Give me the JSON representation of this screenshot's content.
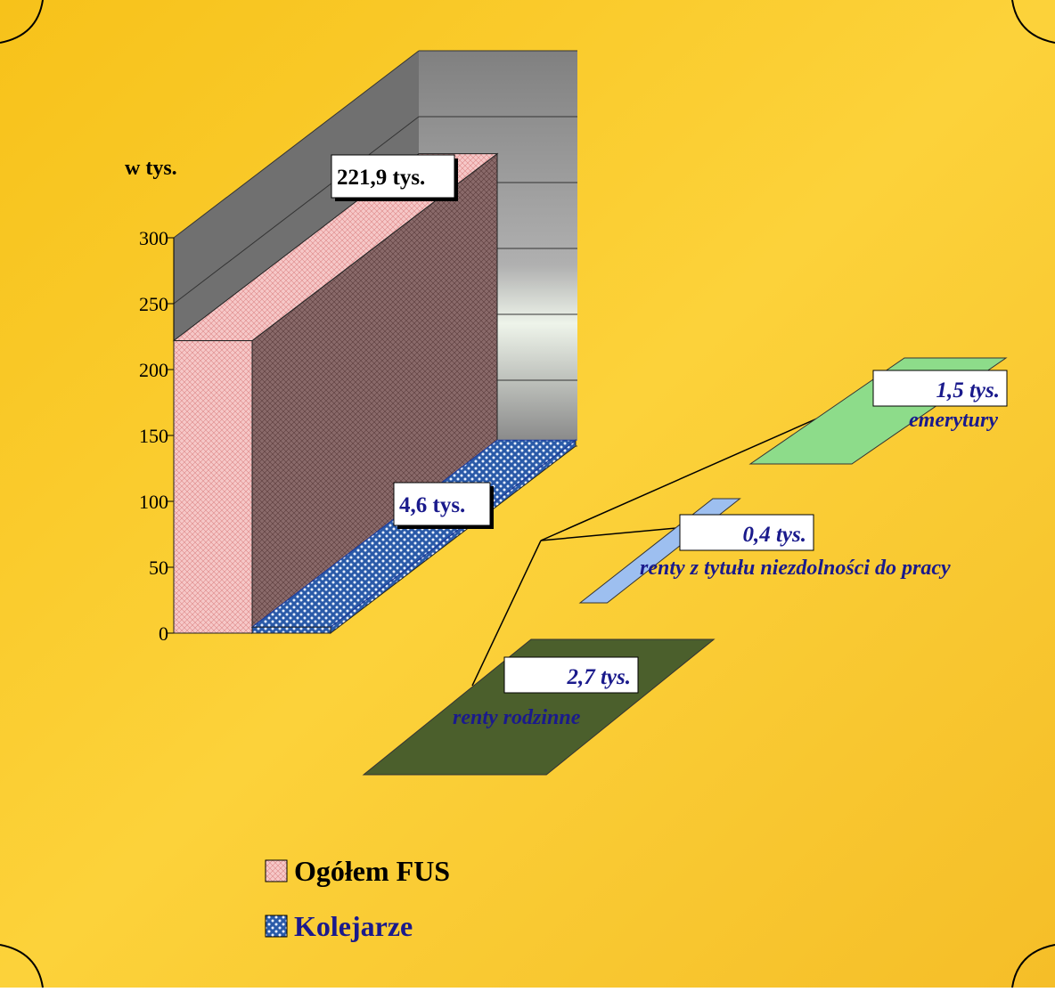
{
  "chart_data": [
    {
      "type": "bar3d",
      "y_label": "w tys.",
      "ylim": [
        0,
        300
      ],
      "yticks": [
        0,
        50,
        100,
        150,
        200,
        250,
        300
      ],
      "series": [
        {
          "name": "Ogółem FUS",
          "color": "#f6c8c8",
          "values": [
            221.9
          ],
          "value_labels": [
            "221,9 tys."
          ]
        },
        {
          "name": "Kolejarze",
          "color": "#2f5fc8",
          "values": [
            4.6
          ],
          "value_labels": [
            "4,6 tys."
          ]
        }
      ]
    },
    {
      "type": "breakdown",
      "categories": [
        "emerytury",
        "renty z tytułu niezdolności do pracy",
        "renty rodzinne"
      ],
      "values": [
        1.5,
        0.4,
        2.7
      ],
      "value_labels": [
        "1,5 tys.",
        "0,4  tys.",
        "2,7 tys."
      ],
      "colors": [
        "#8ddc8a",
        "#9dbff0",
        "#4b5f2c"
      ]
    }
  ]
}
